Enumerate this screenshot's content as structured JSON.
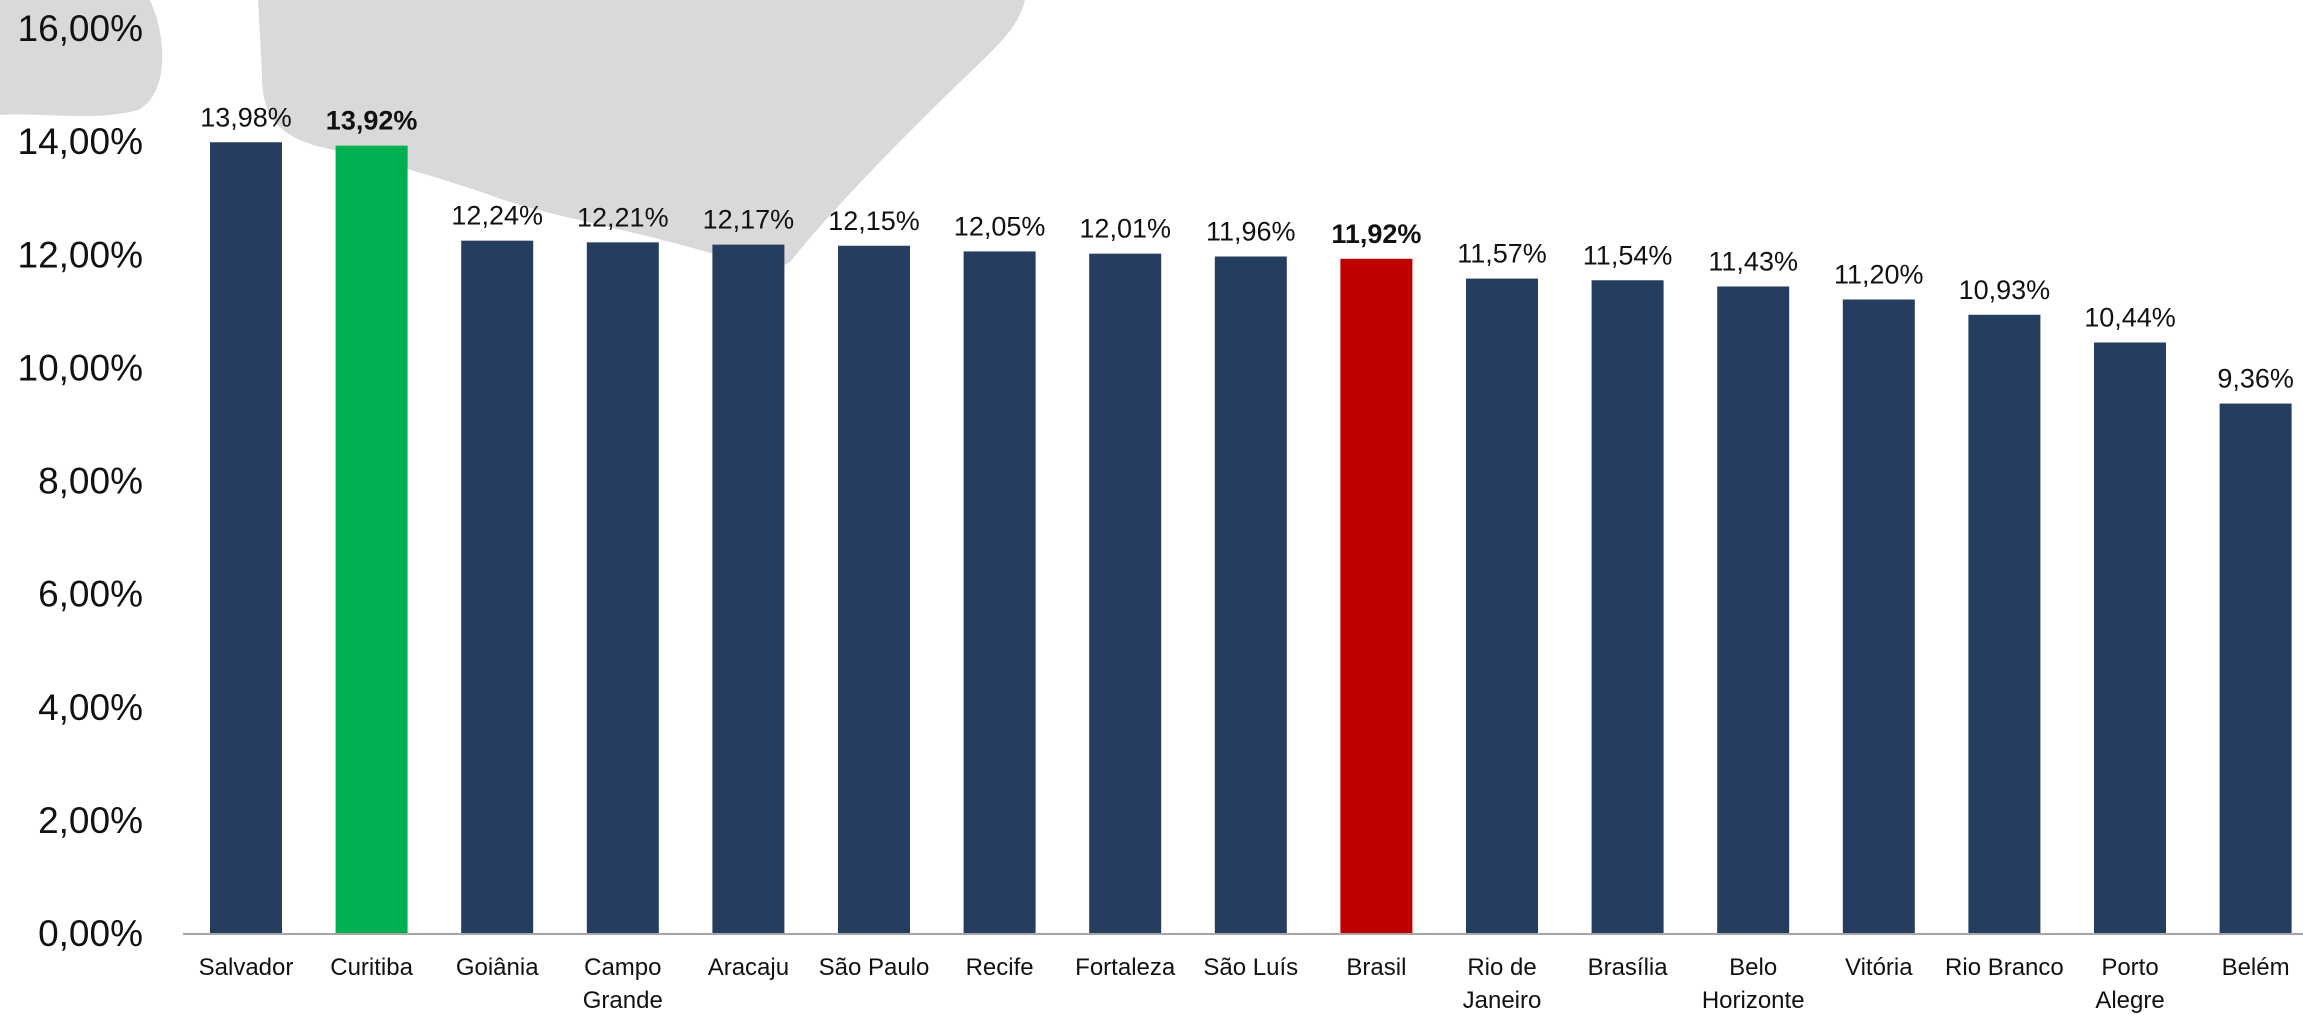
{
  "chart_data": {
    "type": "bar",
    "title": "",
    "xlabel": "",
    "ylabel": "",
    "ylim": [
      0,
      16
    ],
    "yticks": [
      "0,00%",
      "2,00%",
      "4,00%",
      "6,00%",
      "8,00%",
      "10,00%",
      "12,00%",
      "14,00%",
      "16,00%"
    ],
    "grid": false,
    "categories": [
      [
        "Salvador"
      ],
      [
        "Curitiba"
      ],
      [
        "Goiânia"
      ],
      [
        "Campo",
        "Grande"
      ],
      [
        "Aracaju"
      ],
      [
        "São Paulo"
      ],
      [
        "Recife"
      ],
      [
        "Fortaleza"
      ],
      [
        "São Luís"
      ],
      [
        "Brasil"
      ],
      [
        "Rio de",
        "Janeiro"
      ],
      [
        "Brasília"
      ],
      [
        "Belo",
        "Horizonte"
      ],
      [
        "Vitória"
      ],
      [
        "Rio Branco"
      ],
      [
        "Porto",
        "Alegre"
      ],
      [
        "Belém"
      ]
    ],
    "values": [
      13.98,
      13.92,
      12.24,
      12.21,
      12.17,
      12.15,
      12.05,
      12.01,
      11.96,
      11.92,
      11.57,
      11.54,
      11.43,
      11.2,
      10.93,
      10.44,
      9.36
    ],
    "data_labels": [
      "13,98%",
      "13,92%",
      "12,24%",
      "12,21%",
      "12,17%",
      "12,15%",
      "12,05%",
      "12,01%",
      "11,96%",
      "11,92%",
      "11,57%",
      "11,54%",
      "11,43%",
      "11,20%",
      "10,93%",
      "10,44%",
      "9,36%"
    ],
    "bold_labels": [
      1,
      9
    ],
    "colors": {
      "default": "#253D5E",
      "highlight_green": "#00B050",
      "highlight_red": "#C00000",
      "axis": "#A6A6A6",
      "background_shape": "#D9D9D9"
    },
    "bar_colors": [
      "default",
      "highlight_green",
      "default",
      "default",
      "default",
      "default",
      "default",
      "default",
      "default",
      "highlight_red",
      "default",
      "default",
      "default",
      "default",
      "default",
      "default",
      "default"
    ]
  }
}
